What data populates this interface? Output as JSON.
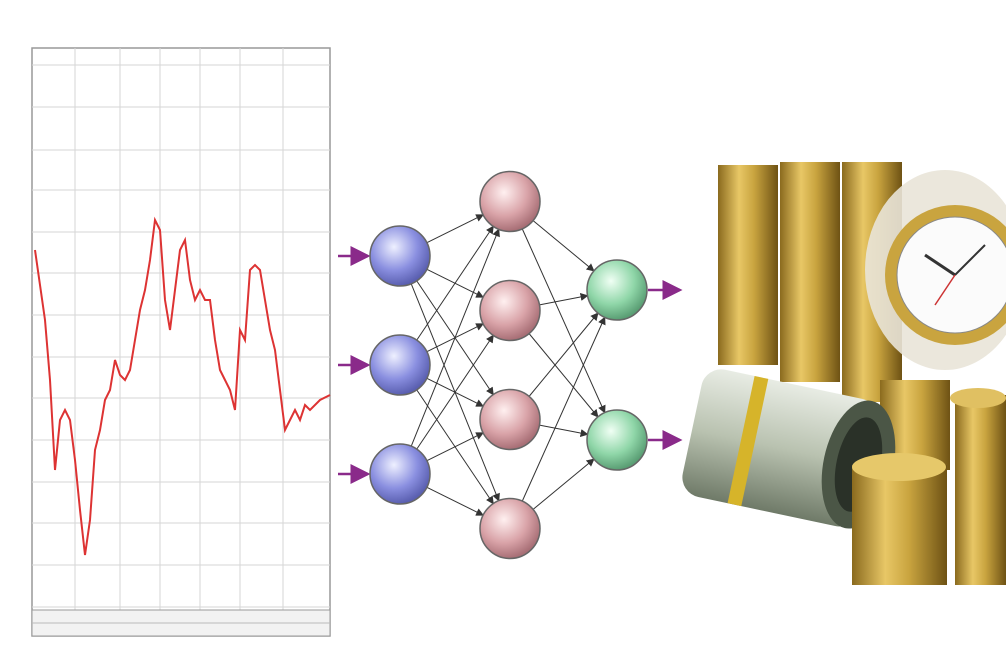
{
  "network": {
    "layers": [
      3,
      4,
      2
    ]
  }
}
